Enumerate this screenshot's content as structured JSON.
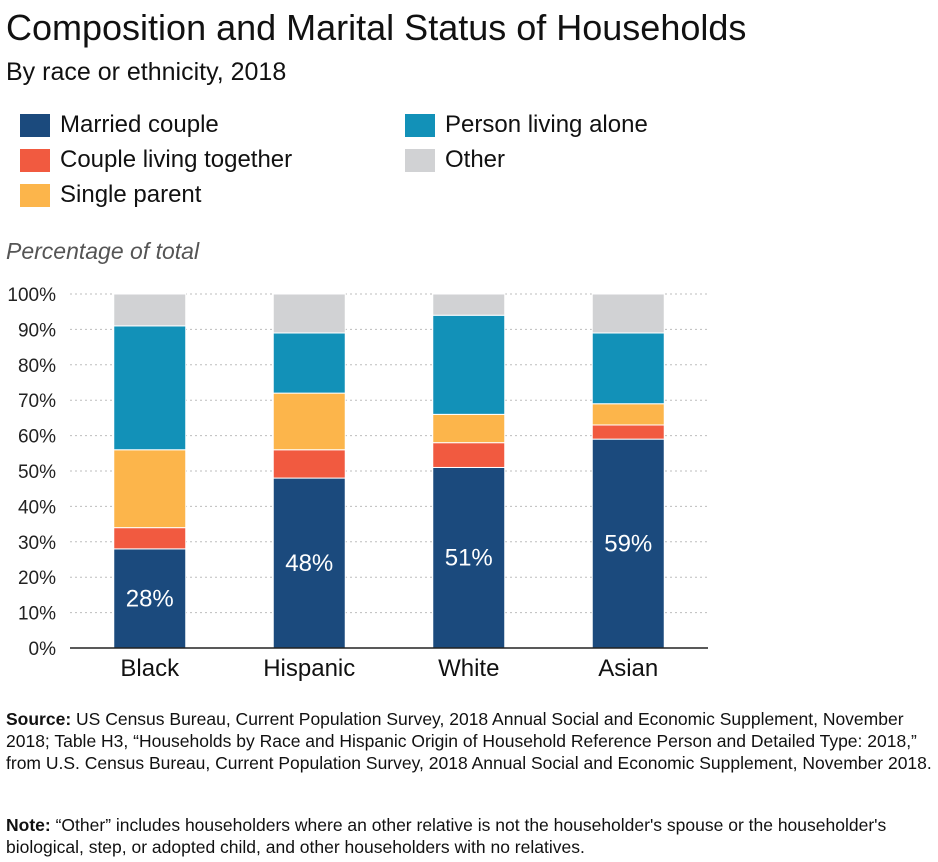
{
  "title": "Composition and Marital Status of Households",
  "subtitle": "By race or ethnicity, 2018",
  "legend": [
    {
      "label": "Married couple",
      "color": "#1b4a7d"
    },
    {
      "label": "Couple living together",
      "color": "#f15a40"
    },
    {
      "label": "Single parent",
      "color": "#fcb54b"
    },
    {
      "label": "Person living alone",
      "color": "#1291b8"
    },
    {
      "label": "Other",
      "color": "#d1d2d4"
    }
  ],
  "footer": {
    "source_label": "Source:",
    "source_text": "US Census Bureau, Current Population Survey, 2018 Annual Social and Economic Supplement, November 2018; Table H3, “Households by Race and Hispanic Origin of Household Reference Person and Detailed Type: 2018,” from U.S. Census Bureau, Current Population Survey, 2018 Annual Social and Economic Supplement, November 2018.",
    "note_label": "Note:",
    "note_text": "“Other” includes householders where an other relative is not the householder's spouse or the householder's biological, step, or adopted child, and other householders with no relatives."
  },
  "chart_data": {
    "type": "bar",
    "stacked": true,
    "title": "Composition and Marital Status of Households",
    "subtitle": "By race or ethnicity, 2018",
    "ylabel": "Percentage of total",
    "xlabel": "",
    "ylim": [
      0,
      100
    ],
    "yticks": [
      "0%",
      "10%",
      "20%",
      "30%",
      "40%",
      "50%",
      "60%",
      "70%",
      "80%",
      "90%",
      "100%"
    ],
    "grid": true,
    "legend_position": "top",
    "categories": [
      "Black",
      "Hispanic",
      "White",
      "Asian"
    ],
    "series": [
      {
        "name": "Married couple",
        "color": "#1b4a7d",
        "values": [
          28,
          48,
          51,
          59
        ]
      },
      {
        "name": "Couple living together",
        "color": "#f15a40",
        "values": [
          6,
          8,
          7,
          4
        ]
      },
      {
        "name": "Single parent",
        "color": "#fcb54b",
        "values": [
          22,
          16,
          8,
          6
        ]
      },
      {
        "name": "Person living alone",
        "color": "#1291b8",
        "values": [
          35,
          17,
          28,
          20
        ]
      },
      {
        "name": "Other",
        "color": "#d1d2d4",
        "values": [
          9,
          11,
          6,
          11
        ]
      }
    ],
    "data_labels": [
      "28%",
      "48%",
      "51%",
      "59%"
    ]
  }
}
